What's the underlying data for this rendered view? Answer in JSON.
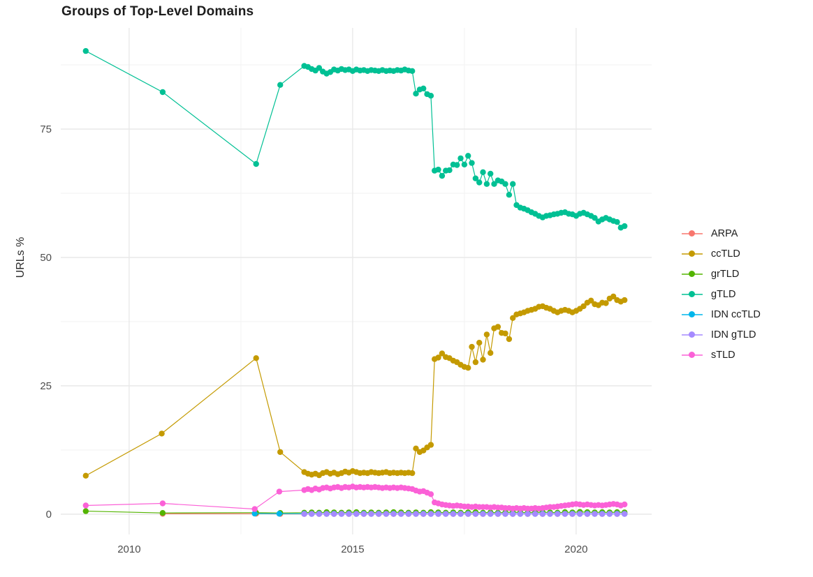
{
  "title": "Groups of Top-Level Domains",
  "colors": {
    "background": "#ffffff",
    "grid_major": "#e9e9e9",
    "grid_minor": "#f4f4f4",
    "axis_text": "#4d4d4d",
    "title_text": "#1c1c1c"
  },
  "chart_data": {
    "type": "line",
    "title": "Groups of Top-Level Domains",
    "xlabel": "",
    "ylabel": "URLs %",
    "grid": true,
    "legend_position": "right",
    "x_domain": [
      2008.47,
      2021.69
    ],
    "y_domain": [
      -3.94,
      94.7
    ],
    "x_ticks": {
      "major": [
        {
          "v": 2010,
          "label": "2010"
        },
        {
          "v": 2015,
          "label": "2015"
        },
        {
          "v": 2020,
          "label": "2020"
        }
      ],
      "minor": [
        2012.5,
        2017.5
      ]
    },
    "y_ticks": {
      "major": [
        {
          "v": 0,
          "label": "0"
        },
        {
          "v": 25,
          "label": "25"
        },
        {
          "v": 50,
          "label": "50"
        },
        {
          "v": 75,
          "label": "75"
        }
      ],
      "minor": [
        12.5,
        37.5,
        62.5,
        87.5
      ]
    },
    "series": [
      {
        "name": "ARPA",
        "color": "#F8766D",
        "early_points": [
          [
            2010.75,
            0.08
          ],
          [
            2012.84,
            0.1
          ],
          [
            2013.38,
            0.06
          ]
        ],
        "grid_points": {
          "start": 2013.9167,
          "step": 0.166667,
          "values": [
            0.06,
            0.09,
            0.06,
            0.09,
            0.06,
            0.09,
            0.06,
            0.09,
            0.06,
            0.09,
            0.06,
            0.09,
            0.06,
            0.09,
            0.06,
            0.09,
            0.06,
            0.09,
            0.06,
            0.09,
            0.06,
            0.09,
            0.06,
            0.09,
            0.06,
            0.09,
            0.06,
            0.09,
            0.06,
            0.09,
            0.06,
            0.09,
            0.06,
            0.09,
            0.06,
            0.09,
            0.06,
            0.09,
            0.06,
            0.09,
            0.06,
            0.09,
            0.06,
            0.09
          ]
        }
      },
      {
        "name": "ccTLD",
        "color": "#C49A00",
        "early_points": [
          [
            2009.03,
            7.5
          ],
          [
            2010.73,
            15.7
          ],
          [
            2012.84,
            30.4
          ],
          [
            2013.38,
            12.1
          ]
        ],
        "grid_points": {
          "start": 2013.9167,
          "step": 0.083333,
          "values": [
            8.2,
            7.9,
            7.7,
            7.9,
            7.6,
            8.0,
            8.2,
            7.9,
            8.1,
            7.8,
            8.0,
            8.3,
            8.1,
            8.4,
            8.2,
            8.0,
            8.1,
            8.0,
            8.2,
            8.1,
            8.0,
            8.1,
            8.2,
            8.0,
            8.1,
            8.0,
            8.1,
            8.0,
            8.1,
            8.0,
            12.8,
            12.1,
            12.4,
            13.0,
            13.5,
            30.2,
            30.5,
            31.3,
            30.6,
            30.4,
            29.9,
            29.6,
            29.1,
            28.7,
            28.5,
            32.6,
            29.6,
            33.4,
            30.1,
            35.0,
            31.4,
            36.2,
            36.5,
            35.3,
            35.2,
            34.1,
            38.2,
            38.9,
            39.1,
            39.3,
            39.6,
            39.8,
            40.0,
            40.4,
            40.5,
            40.2,
            40.0,
            39.6,
            39.3,
            39.6,
            39.8,
            39.6,
            39.3,
            39.6,
            40.0,
            40.5,
            41.2,
            41.6,
            40.9,
            40.7,
            41.2,
            41.1,
            42.0,
            42.4,
            41.7,
            41.4,
            41.7
          ]
        }
      },
      {
        "name": "grTLD",
        "color": "#53B400",
        "early_points": [
          [
            2009.03,
            0.6
          ],
          [
            2010.75,
            0.25
          ],
          [
            2012.84,
            0.3
          ],
          [
            2013.38,
            0.25
          ]
        ],
        "grid_points": {
          "start": 2013.9167,
          "step": 0.166667,
          "values": [
            0.3,
            0.35,
            0.3,
            0.4,
            0.35,
            0.3,
            0.35,
            0.4,
            0.3,
            0.35,
            0.3,
            0.35,
            0.4,
            0.35,
            0.3,
            0.35,
            0.3,
            0.4,
            0.35,
            0.3,
            0.35,
            0.3,
            0.35,
            0.4,
            0.3,
            0.35,
            0.3,
            0.35,
            0.4,
            0.35,
            0.3,
            0.35,
            0.4,
            0.35,
            0.3,
            0.4,
            0.35,
            0.45,
            0.4,
            0.35,
            0.4,
            0.35,
            0.4,
            0.35
          ]
        }
      },
      {
        "name": "gTLD",
        "color": "#00C094",
        "early_points": [
          [
            2009.03,
            90.2
          ],
          [
            2010.75,
            82.2
          ],
          [
            2012.84,
            68.2
          ],
          [
            2013.38,
            83.6
          ]
        ],
        "grid_points": {
          "start": 2013.9167,
          "step": 0.083333,
          "values": [
            87.3,
            87.1,
            86.7,
            86.4,
            86.9,
            86.2,
            85.8,
            86.1,
            86.6,
            86.4,
            86.7,
            86.5,
            86.6,
            86.3,
            86.6,
            86.4,
            86.5,
            86.3,
            86.5,
            86.4,
            86.3,
            86.5,
            86.3,
            86.4,
            86.3,
            86.5,
            86.4,
            86.6,
            86.4,
            86.3,
            81.9,
            82.7,
            82.9,
            81.8,
            81.5,
            66.9,
            67.1,
            65.9,
            66.9,
            67.0,
            68.1,
            68.0,
            69.3,
            68.1,
            69.8,
            68.4,
            65.4,
            64.6,
            66.6,
            64.3,
            66.3,
            64.3,
            65.0,
            64.8,
            64.3,
            62.2,
            64.3,
            60.2,
            59.7,
            59.5,
            59.2,
            58.8,
            58.5,
            58.1,
            57.8,
            58.1,
            58.2,
            58.4,
            58.5,
            58.7,
            58.8,
            58.5,
            58.4,
            58.1,
            58.5,
            58.7,
            58.4,
            58.1,
            57.7,
            57.0,
            57.4,
            57.7,
            57.4,
            57.1,
            56.9,
            55.8,
            56.1
          ]
        }
      },
      {
        "name": "IDN ccTLD",
        "color": "#00B6EB",
        "early_points": [
          [
            2012.81,
            0.12
          ],
          [
            2013.36,
            0.1
          ]
        ],
        "grid_points": {
          "start": 2013.9167,
          "step": 0.166667,
          "values": [
            0.1,
            0.07,
            0.1,
            0.07,
            0.1,
            0.07,
            0.1,
            0.07,
            0.1,
            0.07,
            0.1,
            0.07,
            0.1,
            0.07,
            0.1,
            0.07,
            0.1,
            0.07,
            0.1,
            0.07,
            0.1,
            0.07,
            0.1,
            0.07,
            0.1,
            0.07,
            0.1,
            0.07,
            0.1,
            0.07,
            0.1,
            0.07,
            0.1,
            0.07,
            0.1,
            0.07,
            0.1,
            0.07,
            0.1,
            0.07,
            0.1,
            0.07,
            0.1,
            0.07
          ]
        }
      },
      {
        "name": "IDN gTLD",
        "color": "#A58AFF",
        "early_points": [],
        "grid_points": {
          "start": 2013.9167,
          "step": 0.166667,
          "values": [
            0.04,
            0.06,
            0.04,
            0.06,
            0.04,
            0.06,
            0.04,
            0.06,
            0.04,
            0.06,
            0.04,
            0.06,
            0.04,
            0.06,
            0.04,
            0.06,
            0.04,
            0.06,
            0.04,
            0.06,
            0.04,
            0.06,
            0.04,
            0.06,
            0.04,
            0.06,
            0.04,
            0.06,
            0.04,
            0.06,
            0.04,
            0.06,
            0.04,
            0.06,
            0.04,
            0.06,
            0.04,
            0.06,
            0.04,
            0.06,
            0.04,
            0.06,
            0.04,
            0.06
          ]
        }
      },
      {
        "name": "sTLD",
        "color": "#FB61D7",
        "early_points": [
          [
            2009.03,
            1.7
          ],
          [
            2010.75,
            2.1
          ],
          [
            2012.81,
            1.0
          ],
          [
            2013.36,
            4.4
          ]
        ],
        "grid_points": {
          "start": 2013.9167,
          "step": 0.083333,
          "values": [
            4.7,
            4.9,
            4.7,
            5.0,
            4.8,
            5.1,
            5.2,
            5.0,
            5.2,
            5.3,
            5.1,
            5.3,
            5.2,
            5.4,
            5.2,
            5.3,
            5.2,
            5.3,
            5.2,
            5.3,
            5.2,
            5.1,
            5.2,
            5.1,
            5.2,
            5.1,
            5.2,
            5.1,
            5.0,
            4.9,
            4.6,
            4.4,
            4.5,
            4.2,
            3.9,
            2.3,
            2.1,
            1.9,
            1.8,
            1.7,
            1.6,
            1.7,
            1.6,
            1.5,
            1.5,
            1.4,
            1.5,
            1.4,
            1.4,
            1.4,
            1.3,
            1.4,
            1.3,
            1.3,
            1.2,
            1.2,
            1.1,
            1.2,
            1.1,
            1.2,
            1.1,
            1.1,
            1.2,
            1.1,
            1.2,
            1.3,
            1.4,
            1.4,
            1.5,
            1.6,
            1.7,
            1.8,
            1.9,
            2.0,
            1.9,
            1.8,
            1.9,
            1.8,
            1.7,
            1.8,
            1.7,
            1.8,
            1.9,
            2.0,
            1.9,
            1.7,
            1.9
          ]
        }
      }
    ]
  }
}
